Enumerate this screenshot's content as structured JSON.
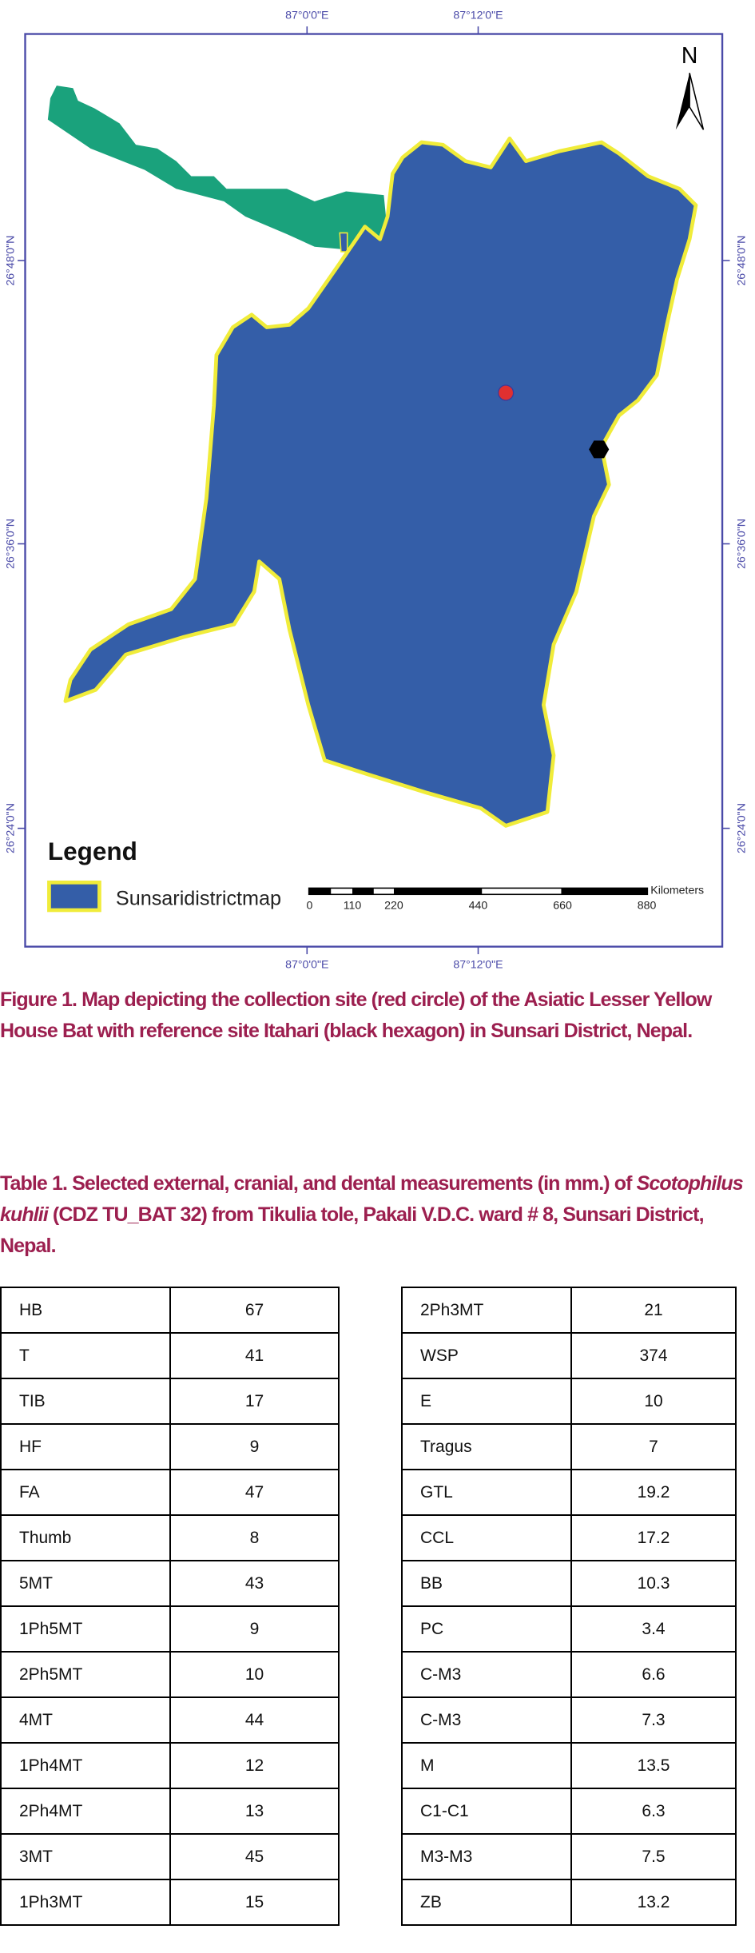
{
  "map": {
    "top_labels": [
      "87°0'0\"E",
      "87°12'0\"E"
    ],
    "bottom_labels": [
      "87°0'0\"E",
      "87°12'0\"E"
    ],
    "left_labels": [
      "26°48'0\"N",
      "26°36'0\"N",
      "26°24'0\"N"
    ],
    "right_labels": [
      "26°48'0\"N",
      "26°36'0\"N",
      "26°24'0\"N"
    ],
    "north_label": "N",
    "legend_title": "Legend",
    "legend_item": "Sunsaridistrictmap",
    "scale_unit": "Kilometers",
    "scale_ticks": [
      "0",
      "110",
      "220",
      "440",
      "660",
      "880"
    ],
    "colors": {
      "district": "#345ea8",
      "district_border": "#f0ec3a",
      "nepal": "#1aa27c",
      "frame": "#4a4aa8",
      "collection_site": "#e03030",
      "reference_site": "#000000"
    },
    "markers": [
      {
        "name": "collection-site",
        "shape": "red circle"
      },
      {
        "name": "reference-site-itahari",
        "shape": "black hexagon"
      }
    ]
  },
  "figure_caption": "Figure 1. Map depicting the collection site (red circle) of the Asiatic Lesser Yellow House Bat with reference site Itahari (black hexagon) in Sunsari District, Nepal.",
  "table_caption": {
    "part1": "Table 1. Selected external, cranial, and dental measurements (in mm.) of ",
    "species": "Scotophilus kuhlii",
    "part2": " (CDZ TU_BAT 32) from Tikulia tole, Pakali V.D.C. ward # 8, Sunsari District, Nepal."
  },
  "table_left": [
    [
      "HB",
      "67"
    ],
    [
      "T",
      "41"
    ],
    [
      "TIB",
      "17"
    ],
    [
      "HF",
      "9"
    ],
    [
      "FA",
      "47"
    ],
    [
      "Thumb",
      "8"
    ],
    [
      "5MT",
      "43"
    ],
    [
      "1Ph5MT",
      "9"
    ],
    [
      "2Ph5MT",
      "10"
    ],
    [
      "4MT",
      "44"
    ],
    [
      "1Ph4MT",
      "12"
    ],
    [
      "2Ph4MT",
      "13"
    ],
    [
      "3MT",
      "45"
    ],
    [
      "1Ph3MT",
      "15"
    ]
  ],
  "table_right": [
    [
      "2Ph3MT",
      "21"
    ],
    [
      "WSP",
      "374"
    ],
    [
      "E",
      "10"
    ],
    [
      "Tragus",
      "7"
    ],
    [
      "GTL",
      "19.2"
    ],
    [
      "CCL",
      "17.2"
    ],
    [
      "BB",
      "10.3"
    ],
    [
      "PC",
      "3.4"
    ],
    [
      "C-M3",
      "6.6"
    ],
    [
      "C-M3",
      "7.3"
    ],
    [
      "M",
      "13.5"
    ],
    [
      "C1-C1",
      "6.3"
    ],
    [
      "M3-M3",
      "7.5"
    ],
    [
      "ZB",
      "13.2"
    ]
  ]
}
